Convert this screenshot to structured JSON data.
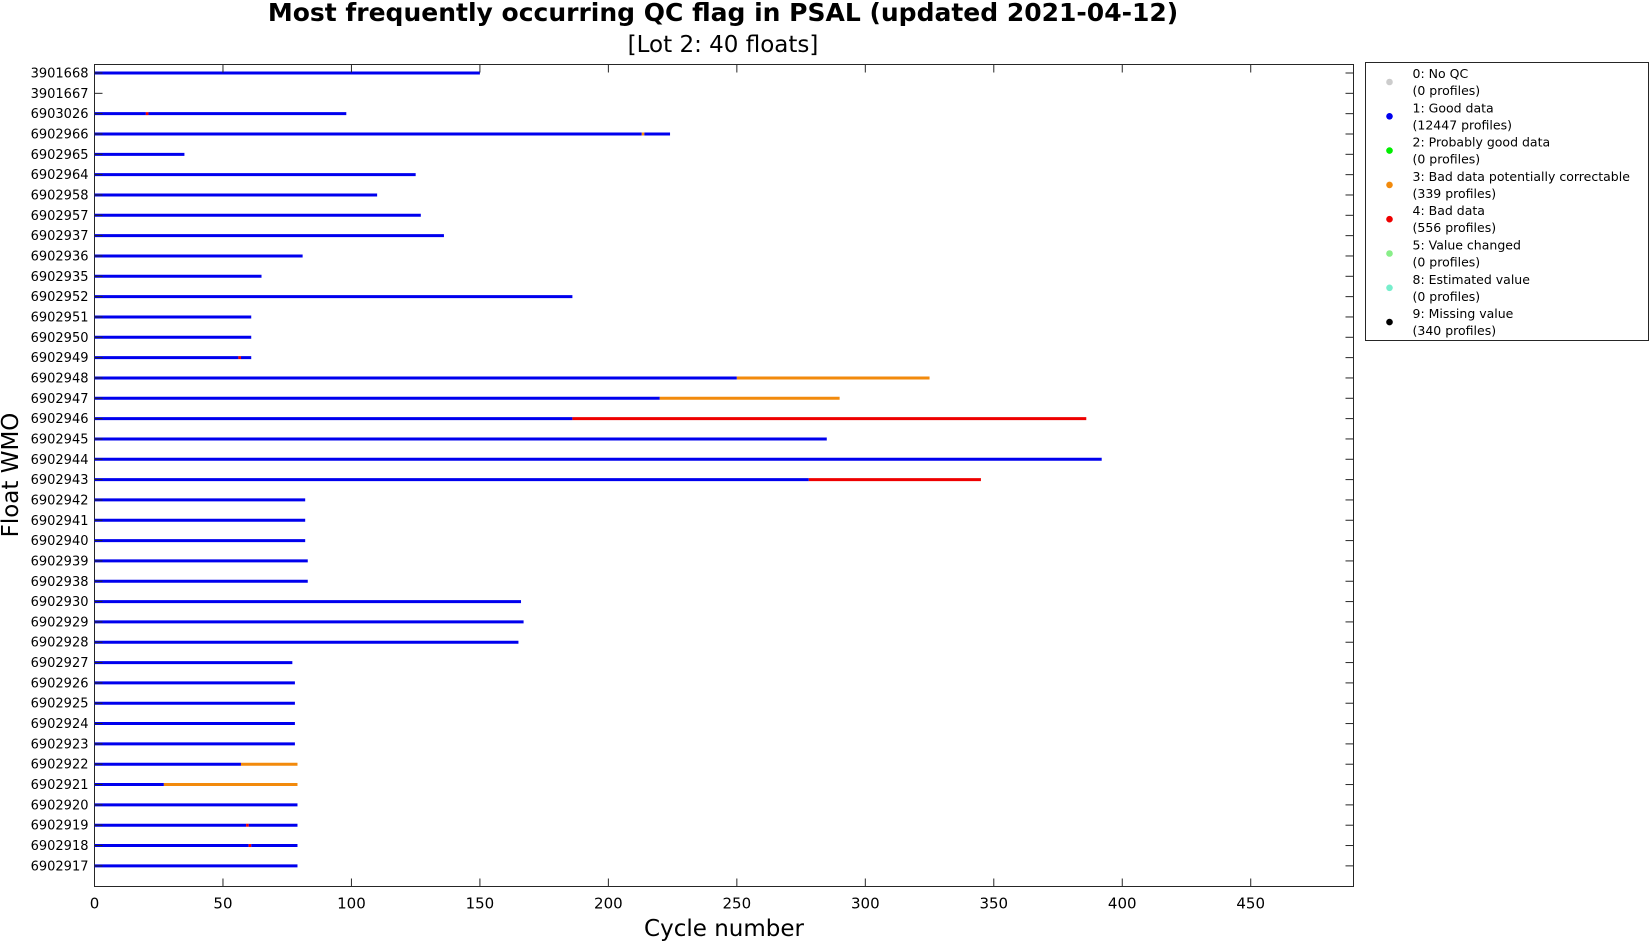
{
  "chart_data": {
    "type": "bar",
    "title": "Most frequently occurring QC flag in PSAL (updated 2021-04-12)",
    "subtitle": "[Lot 2: 40 floats]",
    "xlabel": "Cycle number",
    "ylabel": "Float WMO",
    "xlim": [
      0,
      490
    ],
    "xticks": [
      0,
      50,
      100,
      150,
      200,
      250,
      300,
      350,
      400,
      450
    ],
    "grid": false,
    "legend_position": "outside-top-right",
    "legend": [
      {
        "flag": 0,
        "label": "0: No QC",
        "count": "(0 profiles)",
        "color": "#cccccc"
      },
      {
        "flag": 1,
        "label": "1: Good data",
        "count": "(12447 profiles)",
        "color": "#0000ee"
      },
      {
        "flag": 2,
        "label": "2: Probably good data",
        "count": "(0 profiles)",
        "color": "#00ee00"
      },
      {
        "flag": 3,
        "label": "3: Bad data potentially correctable",
        "count": "(339 profiles)",
        "color": "#f28a0c"
      },
      {
        "flag": 4,
        "label": "4: Bad data",
        "count": "(556 profiles)",
        "color": "#ee0000"
      },
      {
        "flag": 5,
        "label": "5: Value changed",
        "count": "(0 profiles)",
        "color": "#88ee88"
      },
      {
        "flag": 8,
        "label": "8: Estimated value",
        "count": "(0 profiles)",
        "color": "#77eecc"
      },
      {
        "flag": 9,
        "label": "9: Missing value",
        "count": "(340 profiles)",
        "color": "#000000"
      }
    ],
    "floats": [
      {
        "wmo": "3901668",
        "segments": [
          [
            0,
            150,
            1
          ]
        ]
      },
      {
        "wmo": "3901667",
        "segments": []
      },
      {
        "wmo": "6903026",
        "segments": [
          [
            0,
            20,
            1
          ],
          [
            20,
            21,
            4
          ],
          [
            21,
            98,
            1
          ]
        ]
      },
      {
        "wmo": "6902966",
        "segments": [
          [
            0,
            213,
            1
          ],
          [
            213,
            214,
            3
          ],
          [
            214,
            224,
            1
          ]
        ]
      },
      {
        "wmo": "6902965",
        "segments": [
          [
            0,
            35,
            1
          ]
        ]
      },
      {
        "wmo": "6902964",
        "segments": [
          [
            0,
            125,
            1
          ]
        ]
      },
      {
        "wmo": "6902958",
        "segments": [
          [
            0,
            110,
            1
          ]
        ]
      },
      {
        "wmo": "6902957",
        "segments": [
          [
            0,
            127,
            1
          ]
        ]
      },
      {
        "wmo": "6902937",
        "segments": [
          [
            0,
            136,
            1
          ]
        ]
      },
      {
        "wmo": "6902936",
        "segments": [
          [
            0,
            81,
            1
          ]
        ]
      },
      {
        "wmo": "6902935",
        "segments": [
          [
            0,
            65,
            1
          ]
        ]
      },
      {
        "wmo": "6902952",
        "segments": [
          [
            0,
            186,
            1
          ]
        ]
      },
      {
        "wmo": "6902951",
        "segments": [
          [
            0,
            61,
            1
          ]
        ]
      },
      {
        "wmo": "6902950",
        "segments": [
          [
            0,
            61,
            1
          ]
        ]
      },
      {
        "wmo": "6902949",
        "segments": [
          [
            0,
            56,
            1
          ],
          [
            56,
            57,
            4
          ],
          [
            57,
            61,
            1
          ]
        ]
      },
      {
        "wmo": "6902948",
        "segments": [
          [
            0,
            250,
            1
          ],
          [
            250,
            325,
            3
          ]
        ]
      },
      {
        "wmo": "6902947",
        "segments": [
          [
            0,
            220,
            1
          ],
          [
            220,
            290,
            3
          ]
        ]
      },
      {
        "wmo": "6902946",
        "segments": [
          [
            0,
            186,
            1
          ],
          [
            186,
            386,
            4
          ]
        ]
      },
      {
        "wmo": "6902945",
        "segments": [
          [
            0,
            285,
            1
          ]
        ]
      },
      {
        "wmo": "6902944",
        "segments": [
          [
            0,
            392,
            1
          ]
        ]
      },
      {
        "wmo": "6902943",
        "segments": [
          [
            0,
            278,
            1
          ],
          [
            278,
            345,
            4
          ]
        ]
      },
      {
        "wmo": "6902942",
        "segments": [
          [
            0,
            82,
            1
          ]
        ]
      },
      {
        "wmo": "6902941",
        "segments": [
          [
            0,
            82,
            1
          ]
        ]
      },
      {
        "wmo": "6902940",
        "segments": [
          [
            0,
            82,
            1
          ]
        ]
      },
      {
        "wmo": "6902939",
        "segments": [
          [
            0,
            83,
            1
          ]
        ]
      },
      {
        "wmo": "6902938",
        "segments": [
          [
            0,
            83,
            1
          ]
        ]
      },
      {
        "wmo": "6902930",
        "segments": [
          [
            0,
            166,
            1
          ]
        ]
      },
      {
        "wmo": "6902929",
        "segments": [
          [
            0,
            167,
            1
          ]
        ]
      },
      {
        "wmo": "6902928",
        "segments": [
          [
            0,
            165,
            1
          ]
        ]
      },
      {
        "wmo": "6902927",
        "segments": [
          [
            0,
            77,
            1
          ]
        ]
      },
      {
        "wmo": "6902926",
        "segments": [
          [
            0,
            78,
            1
          ]
        ]
      },
      {
        "wmo": "6902925",
        "segments": [
          [
            0,
            78,
            1
          ]
        ]
      },
      {
        "wmo": "6902924",
        "segments": [
          [
            0,
            78,
            1
          ]
        ]
      },
      {
        "wmo": "6902923",
        "segments": [
          [
            0,
            78,
            1
          ]
        ]
      },
      {
        "wmo": "6902922",
        "segments": [
          [
            0,
            57,
            1
          ],
          [
            57,
            79,
            3
          ]
        ]
      },
      {
        "wmo": "6902921",
        "segments": [
          [
            0,
            27,
            1
          ],
          [
            27,
            79,
            3
          ]
        ]
      },
      {
        "wmo": "6902920",
        "segments": [
          [
            0,
            79,
            1
          ]
        ]
      },
      {
        "wmo": "6902919",
        "segments": [
          [
            0,
            59,
            1
          ],
          [
            59,
            60,
            4
          ],
          [
            60,
            79,
            1
          ]
        ]
      },
      {
        "wmo": "6902918",
        "segments": [
          [
            0,
            60,
            1
          ],
          [
            60,
            61,
            4
          ],
          [
            61,
            79,
            1
          ]
        ]
      },
      {
        "wmo": "6902917",
        "segments": [
          [
            0,
            79,
            1
          ]
        ]
      }
    ]
  }
}
